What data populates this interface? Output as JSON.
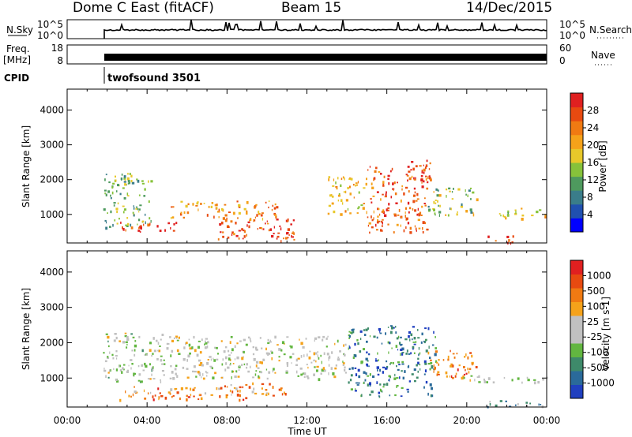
{
  "header": {
    "radar": "Dome C East (fitACF)",
    "beam": "Beam 15",
    "date": "14/Dec/2015"
  },
  "strips": {
    "nsky_label": "N.Sky",
    "nsky_ticks": [
      "10^5",
      "10^0"
    ],
    "nsearch_label": "N.Search",
    "nsearch_ticks": [
      "10^5",
      "10^0"
    ],
    "freq_label": "Freq.",
    "freq_unit": "[MHz]",
    "freq_ticks": [
      "18",
      "8"
    ],
    "nave_label": "Nave",
    "nave_ticks": [
      "60",
      "0"
    ],
    "cpid_label": "CPID",
    "cpid_value": "twofsound 3501"
  },
  "chart_data": [
    {
      "type": "heatmap",
      "name": "Power",
      "ylabel": "Slant Range [km]",
      "xlabel": "",
      "xlim_hours": [
        0,
        24
      ],
      "ylim_km": [
        180,
        4600
      ],
      "yticks": [
        "1000",
        "2000",
        "3000",
        "4000"
      ],
      "colorbar": {
        "label": "Power [dB]",
        "ticks": [
          "28",
          "24",
          "20",
          "16",
          "12",
          "8",
          "4"
        ],
        "colors": [
          "#0000ff",
          "#2050b0",
          "#3a7d8a",
          "#4e9a5e",
          "#86c23a",
          "#e8c82a",
          "#f5a21a",
          "#f07a12",
          "#e84a10",
          "#e02020"
        ]
      },
      "echo_regions": [
        {
          "t0": 1.8,
          "t1": 4.2,
          "r0": 600,
          "r1": 2200,
          "level": 0.4
        },
        {
          "t0": 2.5,
          "t1": 5.5,
          "r0": 500,
          "r1": 800,
          "level": 0.9
        },
        {
          "t0": 5.0,
          "t1": 10.5,
          "r0": 900,
          "r1": 1400,
          "level": 0.7
        },
        {
          "t0": 7.5,
          "t1": 11.5,
          "r0": 300,
          "r1": 900,
          "level": 0.85
        },
        {
          "t0": 10.5,
          "t1": 11.5,
          "r0": 200,
          "r1": 500,
          "level": 0.95
        },
        {
          "t0": 13.0,
          "t1": 15.0,
          "r0": 1000,
          "r1": 2100,
          "level": 0.6
        },
        {
          "t0": 15.0,
          "t1": 18.0,
          "r0": 500,
          "r1": 2400,
          "level": 0.8
        },
        {
          "t0": 17.0,
          "t1": 18.2,
          "r0": 1800,
          "r1": 2600,
          "level": 0.9
        },
        {
          "t0": 18.0,
          "t1": 20.5,
          "r0": 1000,
          "r1": 1800,
          "level": 0.45
        },
        {
          "t0": 21.0,
          "t1": 22.5,
          "r0": 200,
          "r1": 400,
          "level": 0.9
        },
        {
          "t0": 21.5,
          "t1": 24.0,
          "r0": 900,
          "r1": 1200,
          "level": 0.55
        }
      ]
    },
    {
      "type": "heatmap",
      "name": "Velocity",
      "ylabel": "Slant Range [km]",
      "xlabel": "Time UT",
      "xlim_hours": [
        0,
        24
      ],
      "xticks": [
        "00:00",
        "04:00",
        "08:00",
        "12:00",
        "16:00",
        "20:00",
        "00:00"
      ],
      "ylim_km": [
        180,
        4600
      ],
      "yticks": [
        "1000",
        "2000",
        "3000",
        "4000"
      ],
      "colorbar": {
        "label": "Velocity [m s-1]",
        "ticks": [
          "1000",
          "500",
          "100",
          "25",
          "-25",
          "-100",
          "-500",
          "-1000"
        ],
        "colors": [
          "#2040c0",
          "#2a6a9a",
          "#3e8a6a",
          "#62b640",
          "#c0c0c0",
          "#c0c0c0",
          "#f5a21a",
          "#f07a12",
          "#e84a10",
          "#e02020"
        ]
      },
      "echo_regions": [
        {
          "t0": 1.8,
          "t1": 5.0,
          "r0": 900,
          "r1": 2300,
          "level": 0.45
        },
        {
          "t0": 2.5,
          "t1": 9.0,
          "r0": 400,
          "r1": 800,
          "level": 0.75
        },
        {
          "t0": 8.0,
          "t1": 11.0,
          "r0": 500,
          "r1": 900,
          "level": 0.7
        },
        {
          "t0": 5.0,
          "t1": 14.0,
          "r0": 1000,
          "r1": 2200,
          "level": 0.5
        },
        {
          "t0": 14.0,
          "t1": 18.5,
          "r0": 500,
          "r1": 2500,
          "level": 0.2
        },
        {
          "t0": 18.0,
          "t1": 20.5,
          "r0": 1000,
          "r1": 1800,
          "level": 0.75
        },
        {
          "t0": 19.5,
          "t1": 24.0,
          "r0": 900,
          "r1": 1100,
          "level": 0.45
        },
        {
          "t0": 21.0,
          "t1": 24.0,
          "r0": 200,
          "r1": 400,
          "level": 0.3
        }
      ]
    }
  ]
}
